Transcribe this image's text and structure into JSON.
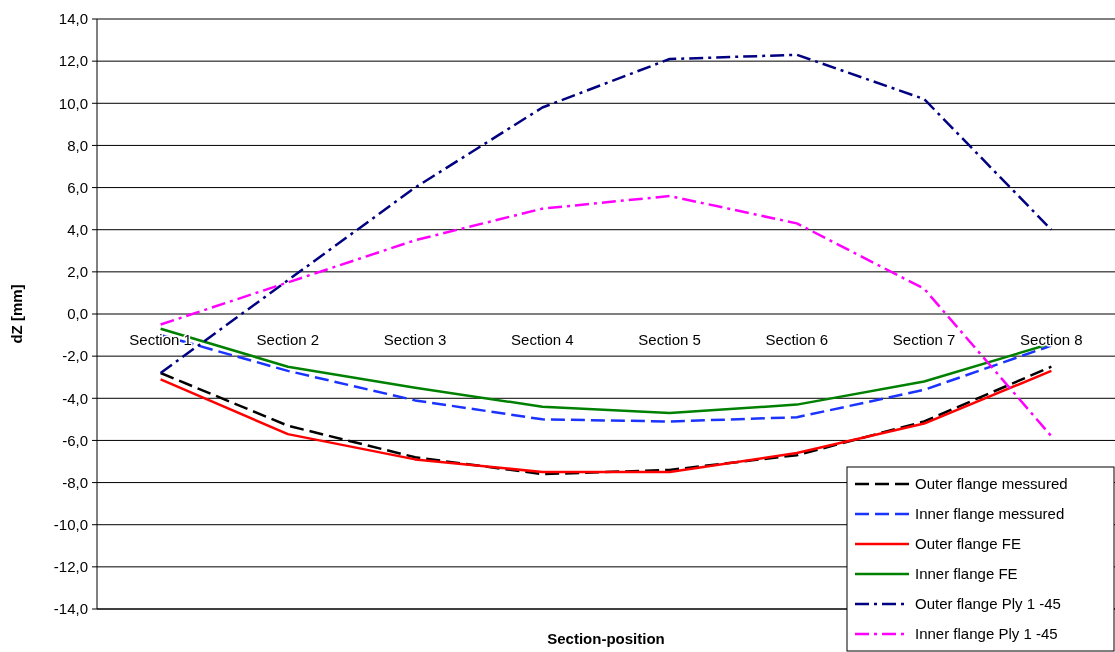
{
  "chart_data": {
    "type": "line",
    "xlabel": "Section-position",
    "ylabel": "dZ [mm]",
    "categories": [
      "Section 1",
      "Section 2",
      "Section 3",
      "Section 4",
      "Section 5",
      "Section 6",
      "Section 7",
      "Section 8"
    ],
    "ylim": [
      -14,
      14
    ],
    "yticks": [
      {
        "value": -14,
        "label": "-14,0"
      },
      {
        "value": -12,
        "label": "-12,0"
      },
      {
        "value": -10,
        "label": "-10,0"
      },
      {
        "value": -8,
        "label": "-8,0"
      },
      {
        "value": -6,
        "label": "-6,0"
      },
      {
        "value": -4,
        "label": "-4,0"
      },
      {
        "value": -2,
        "label": "-2,0"
      },
      {
        "value": 0,
        "label": "0,0"
      },
      {
        "value": 2,
        "label": "2,0"
      },
      {
        "value": 4,
        "label": "4,0"
      },
      {
        "value": 6,
        "label": "6,0"
      },
      {
        "value": 8,
        "label": "8,0"
      },
      {
        "value": 10,
        "label": "10,0"
      },
      {
        "value": 12,
        "label": "12,0"
      },
      {
        "value": 14,
        "label": "14,0"
      }
    ],
    "grid": "y",
    "legend": "bottom right",
    "marker": "none",
    "series": [
      {
        "name": "Outer flange messured",
        "color": "#000000",
        "line_style": "dashed",
        "values": [
          -2.8,
          -5.3,
          -6.8,
          -7.6,
          -7.4,
          -6.7,
          -5.1,
          -2.5
        ]
      },
      {
        "name": "Inner flange messured",
        "color": "#1a33ff",
        "line_style": "dashed",
        "values": [
          -1.0,
          -2.7,
          -4.1,
          -5.0,
          -5.1,
          -4.9,
          -3.6,
          -1.5
        ]
      },
      {
        "name": "Outer flange FE",
        "color": "#ff0000",
        "line_style": "solid",
        "values": [
          -3.1,
          -5.7,
          -6.9,
          -7.5,
          -7.5,
          -6.6,
          -5.2,
          -2.7
        ]
      },
      {
        "name": "Inner flange FE",
        "color": "#008000",
        "line_style": "solid",
        "values": [
          -0.7,
          -2.5,
          -3.5,
          -4.4,
          -4.7,
          -4.3,
          -3.2,
          -1.4
        ]
      },
      {
        "name": "Outer flange Ply 1 -45",
        "color": "#000080",
        "line_style": "dashdot",
        "values": [
          -2.8,
          1.6,
          6.0,
          9.8,
          12.1,
          12.3,
          10.2,
          4.0
        ]
      },
      {
        "name": "Inner flange Ply 1 -45",
        "color": "#ff00ff",
        "line_style": "dashdot",
        "values": [
          -0.5,
          1.5,
          3.5,
          5.0,
          5.6,
          4.3,
          1.2,
          -5.8
        ]
      }
    ]
  }
}
